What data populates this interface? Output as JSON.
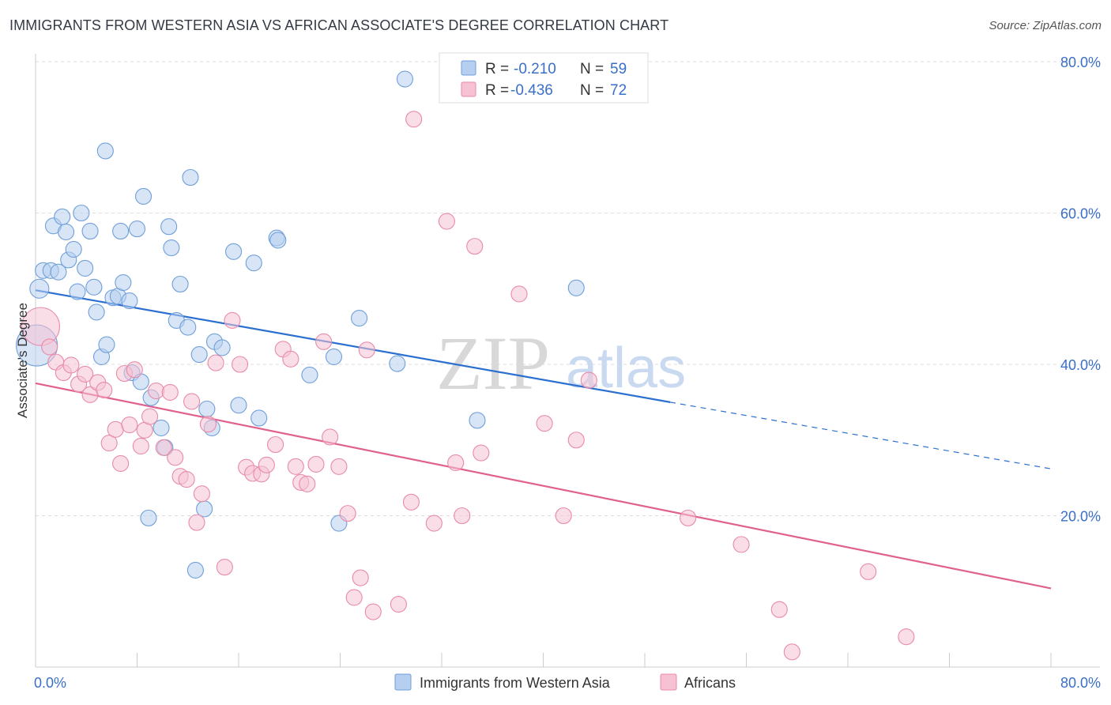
{
  "title": "IMMIGRANTS FROM WESTERN ASIA VS AFRICAN ASSOCIATE'S DEGREE CORRELATION CHART",
  "source": "Source: ZipAtlas.com",
  "watermark": {
    "zip": "ZIP",
    "atlas": "atlas"
  },
  "colors": {
    "blue": "#6f9fd8",
    "blue_fill": "#b6cff0",
    "blue_line": "#2b6fd0",
    "pink": "#e88aa8",
    "pink_fill": "#f6c2d3",
    "pink_line": "#e0608e",
    "axis_text": "#3a6fc8",
    "grid": "#dddddd"
  },
  "legend_stats": [
    {
      "r_label": "R =",
      "r_value": "-0.210",
      "n_label": "N =",
      "n_value": "59",
      "color": "blue"
    },
    {
      "r_label": "R =",
      "r_value": "-0.436",
      "n_label": "N =",
      "n_value": "72",
      "color": "pink"
    }
  ],
  "chart_data": {
    "type": "scatter",
    "ylabel": "Associate's Degree",
    "xlabel": "",
    "xlim": [
      0,
      80
    ],
    "ylim": [
      0,
      80
    ],
    "x_tick_labels": [
      "0.0%",
      "80.0%"
    ],
    "y_ticks": [
      20,
      40,
      60,
      80
    ],
    "y_tick_labels": [
      "20.0%",
      "40.0%",
      "60.0%",
      "80.0%"
    ],
    "grid": true,
    "legend_position": "bottom-center",
    "series": [
      {
        "name": "Immigrants from Western Asia",
        "color": "blue",
        "trend": {
          "x0": 0,
          "y0": 49.8,
          "x1": 50,
          "y1": 35.0,
          "dash_to_x": 80,
          "dash_to_y": 26.2
        },
        "points": [
          [
            0.3,
            50.0
          ],
          [
            0.6,
            52.4
          ],
          [
            1.2,
            52.4
          ],
          [
            1.4,
            58.3
          ],
          [
            1.8,
            52.2
          ],
          [
            2.1,
            59.5
          ],
          [
            2.4,
            57.5
          ],
          [
            2.6,
            53.8
          ],
          [
            3.0,
            55.2
          ],
          [
            3.3,
            49.6
          ],
          [
            3.6,
            60.0
          ],
          [
            3.9,
            52.7
          ],
          [
            4.3,
            57.6
          ],
          [
            4.6,
            50.2
          ],
          [
            4.8,
            46.9
          ],
          [
            5.2,
            41.0
          ],
          [
            5.6,
            42.6
          ],
          [
            5.5,
            68.2
          ],
          [
            6.1,
            48.8
          ],
          [
            6.5,
            49.0
          ],
          [
            6.7,
            57.6
          ],
          [
            6.9,
            50.8
          ],
          [
            7.4,
            48.4
          ],
          [
            7.6,
            38.9
          ],
          [
            8.0,
            57.9
          ],
          [
            8.3,
            37.7
          ],
          [
            8.5,
            62.2
          ],
          [
            8.9,
            19.7
          ],
          [
            9.1,
            35.6
          ],
          [
            9.9,
            31.6
          ],
          [
            10.2,
            29.0
          ],
          [
            10.5,
            58.2
          ],
          [
            10.7,
            55.4
          ],
          [
            11.1,
            45.8
          ],
          [
            11.4,
            50.6
          ],
          [
            12.0,
            44.9
          ],
          [
            12.2,
            64.7
          ],
          [
            12.6,
            12.8
          ],
          [
            12.9,
            41.3
          ],
          [
            13.3,
            20.9
          ],
          [
            13.5,
            34.1
          ],
          [
            13.9,
            31.6
          ],
          [
            14.1,
            43.0
          ],
          [
            14.7,
            42.2
          ],
          [
            15.6,
            54.9
          ],
          [
            16.0,
            34.6
          ],
          [
            17.2,
            53.4
          ],
          [
            17.6,
            32.9
          ],
          [
            19.0,
            56.7
          ],
          [
            19.1,
            56.4
          ],
          [
            21.6,
            38.6
          ],
          [
            23.5,
            41.0
          ],
          [
            23.9,
            19.0
          ],
          [
            25.5,
            46.1
          ],
          [
            28.5,
            40.1
          ],
          [
            29.1,
            77.7
          ],
          [
            34.8,
            32.6
          ],
          [
            42.6,
            50.1
          ],
          [
            0.1,
            42.5
          ]
        ],
        "point_sizes": [
          12,
          10,
          10,
          10,
          10,
          10,
          10,
          10,
          10,
          10,
          10,
          10,
          10,
          10,
          10,
          10,
          10,
          10,
          10,
          10,
          10,
          10,
          10,
          10,
          10,
          10,
          10,
          10,
          10,
          10,
          10,
          10,
          10,
          10,
          10,
          10,
          10,
          10,
          10,
          10,
          10,
          10,
          10,
          10,
          10,
          10,
          10,
          10,
          10,
          10,
          10,
          10,
          10,
          10,
          10,
          10,
          10,
          10,
          26
        ]
      },
      {
        "name": "Africans",
        "color": "pink",
        "trend": {
          "x0": 0,
          "y0": 37.5,
          "x1": 80,
          "y1": 10.4
        },
        "points": [
          [
            0.4,
            45.0
          ],
          [
            1.1,
            42.3
          ],
          [
            1.6,
            40.3
          ],
          [
            2.2,
            38.9
          ],
          [
            2.8,
            39.9
          ],
          [
            3.4,
            37.4
          ],
          [
            3.9,
            38.7
          ],
          [
            4.3,
            36.0
          ],
          [
            4.9,
            37.6
          ],
          [
            5.4,
            36.6
          ],
          [
            5.8,
            29.6
          ],
          [
            6.3,
            31.4
          ],
          [
            6.7,
            26.9
          ],
          [
            7.0,
            38.8
          ],
          [
            7.4,
            32.0
          ],
          [
            7.8,
            39.3
          ],
          [
            8.3,
            29.2
          ],
          [
            8.6,
            31.3
          ],
          [
            9.0,
            33.1
          ],
          [
            9.5,
            36.5
          ],
          [
            10.1,
            29.0
          ],
          [
            10.6,
            36.3
          ],
          [
            11.0,
            27.7
          ],
          [
            11.4,
            25.2
          ],
          [
            11.9,
            24.8
          ],
          [
            12.3,
            35.1
          ],
          [
            12.7,
            19.1
          ],
          [
            13.1,
            22.9
          ],
          [
            13.6,
            32.1
          ],
          [
            14.2,
            40.2
          ],
          [
            14.9,
            13.2
          ],
          [
            15.5,
            45.8
          ],
          [
            16.1,
            40.0
          ],
          [
            16.6,
            26.4
          ],
          [
            17.1,
            25.6
          ],
          [
            17.8,
            25.5
          ],
          [
            18.2,
            26.7
          ],
          [
            18.9,
            29.4
          ],
          [
            19.5,
            42.0
          ],
          [
            20.1,
            40.7
          ],
          [
            20.5,
            26.5
          ],
          [
            20.9,
            24.4
          ],
          [
            21.4,
            24.2
          ],
          [
            22.1,
            26.8
          ],
          [
            22.7,
            43.0
          ],
          [
            23.2,
            30.4
          ],
          [
            23.9,
            26.5
          ],
          [
            24.6,
            20.3
          ],
          [
            25.1,
            9.2
          ],
          [
            25.6,
            11.8
          ],
          [
            26.1,
            41.9
          ],
          [
            26.6,
            7.3
          ],
          [
            28.6,
            8.3
          ],
          [
            29.6,
            21.8
          ],
          [
            29.8,
            72.4
          ],
          [
            31.4,
            19.0
          ],
          [
            32.4,
            58.9
          ],
          [
            33.1,
            27.0
          ],
          [
            33.6,
            20.0
          ],
          [
            34.6,
            55.6
          ],
          [
            35.1,
            28.3
          ],
          [
            38.1,
            49.3
          ],
          [
            40.1,
            32.2
          ],
          [
            41.6,
            20.0
          ],
          [
            42.6,
            30.0
          ],
          [
            43.6,
            37.9
          ],
          [
            51.4,
            19.7
          ],
          [
            55.6,
            16.2
          ],
          [
            58.6,
            7.6
          ],
          [
            59.6,
            2.0
          ],
          [
            65.6,
            12.6
          ],
          [
            68.6,
            4.0
          ]
        ],
        "point_sizes": [
          24,
          10,
          10,
          10,
          10,
          10,
          10,
          10,
          10,
          10,
          10,
          10,
          10,
          10,
          10,
          10,
          10,
          10,
          10,
          10,
          10,
          10,
          10,
          10,
          10,
          10,
          10,
          10,
          10,
          10,
          10,
          10,
          10,
          10,
          10,
          10,
          10,
          10,
          10,
          10,
          10,
          10,
          10,
          10,
          10,
          10,
          10,
          10,
          10,
          10,
          10,
          10,
          10,
          10,
          10,
          10,
          10,
          10,
          10,
          10,
          10,
          10,
          10,
          10,
          10,
          10,
          10,
          10,
          10,
          10,
          10,
          10
        ]
      }
    ]
  }
}
